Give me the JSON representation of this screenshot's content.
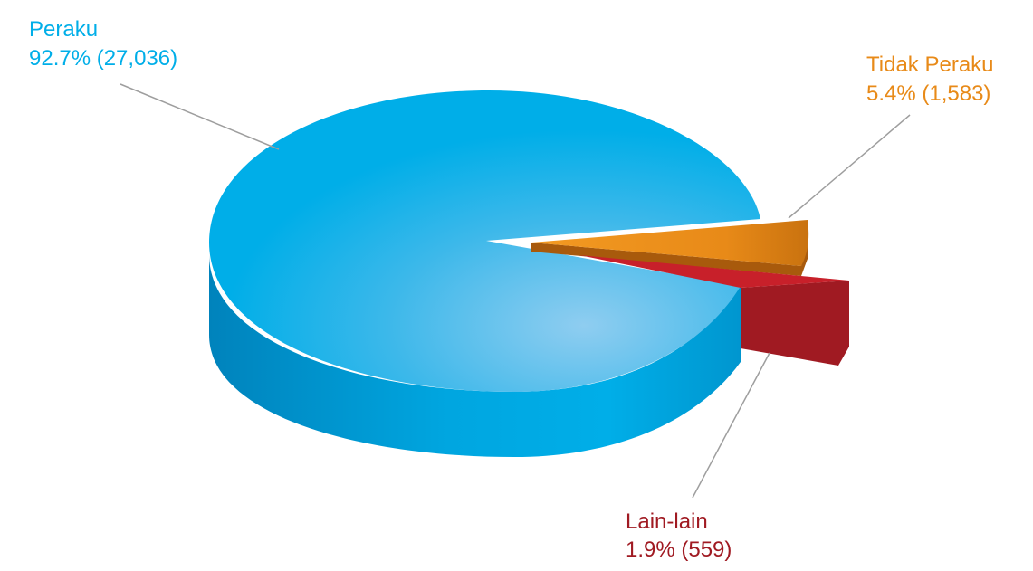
{
  "chart_data": {
    "type": "pie",
    "title": "",
    "style": "3d-exploded",
    "slices": [
      {
        "name": "Peraku",
        "percent_label": "92.7% (27,036)",
        "percent": 92.7,
        "value": 27036,
        "color": "#00aee8",
        "dark": "#0089c4"
      },
      {
        "name": "Tidak Peraku",
        "percent_label": "5.4% (1,583)",
        "percent": 5.4,
        "value": 1583,
        "color": "#f0941e",
        "dark": "#c06c12"
      },
      {
        "name": "Lain-lain",
        "percent_label": "1.9% (559)",
        "percent": 1.9,
        "value": 559,
        "color": "#c8202a",
        "dark": "#971a1f"
      }
    ]
  }
}
